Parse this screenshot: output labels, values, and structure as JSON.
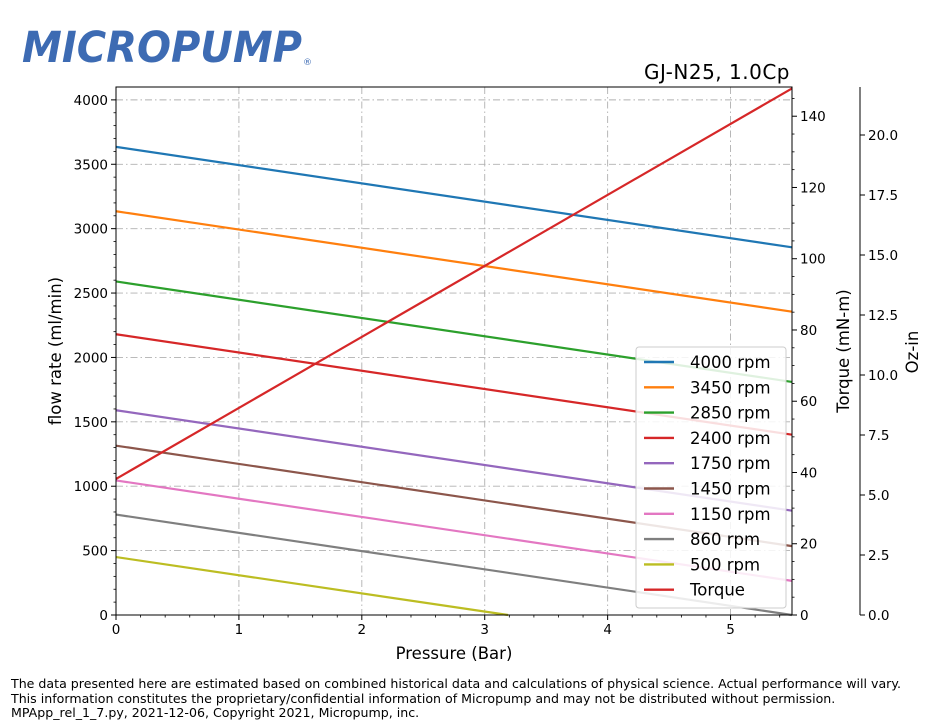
{
  "logo": {
    "text": "MICROPUMP",
    "reg": "®",
    "color": "#3d6bb3"
  },
  "subtitle": "GJ-N25,  1.0Cp",
  "footer": {
    "line1": "The data presented here are estimated based on combined historical data and calculations of physical science.  Actual performance will vary.",
    "line2": "This information constitutes the proprietary/confidential information of Micropump and may not be distributed without permission.",
    "line3": "MPApp_rel_1_7.py, 2021-12-06, Copyright 2021, Micropump, inc."
  },
  "chart_data": {
    "type": "line",
    "xlabel": "Pressure (Bar)",
    "ylabel": "flow rate (ml/min)",
    "y2label": "Torque (mN-m)",
    "y3label": "Oz-in",
    "xlim": [
      0,
      5.5
    ],
    "ylim": [
      0,
      4100
    ],
    "y2lim": [
      0,
      148.2
    ],
    "y3lim": [
      0,
      22
    ],
    "xticks": [
      0,
      1,
      2,
      3,
      4,
      5
    ],
    "yticks": [
      0,
      500,
      1000,
      1500,
      2000,
      2500,
      3000,
      3500,
      4000
    ],
    "y2ticks": [
      0,
      20,
      40,
      60,
      80,
      100,
      120,
      140
    ],
    "y3ticks": [
      "0.0",
      "2.5",
      "5.0",
      "7.5",
      "10.0",
      "12.5",
      "15.0",
      "17.5",
      "20.0"
    ],
    "grid": true,
    "legend_position": "lower-right",
    "series": [
      {
        "name": "4000 rpm",
        "color": "#1f77b4",
        "x": [
          0,
          5.5
        ],
        "y": [
          3635,
          2855
        ]
      },
      {
        "name": "3450 rpm",
        "color": "#ff7f0e",
        "x": [
          0,
          5.5
        ],
        "y": [
          3135,
          2355
        ]
      },
      {
        "name": "2850 rpm",
        "color": "#2ca02c",
        "x": [
          0,
          5.5
        ],
        "y": [
          2590,
          1810
        ]
      },
      {
        "name": "2400 rpm",
        "color": "#d62728",
        "x": [
          0,
          5.5
        ],
        "y": [
          2180,
          1400
        ]
      },
      {
        "name": "1750 rpm",
        "color": "#9467bd",
        "x": [
          0,
          5.5
        ],
        "y": [
          1590,
          810
        ]
      },
      {
        "name": "1450 rpm",
        "color": "#8c564b",
        "x": [
          0,
          5.5
        ],
        "y": [
          1315,
          535
        ]
      },
      {
        "name": "1150 rpm",
        "color": "#e377c2",
        "x": [
          0,
          5.5
        ],
        "y": [
          1045,
          265
        ]
      },
      {
        "name": "860 rpm",
        "color": "#7f7f7f",
        "x": [
          0,
          5.5
        ],
        "y": [
          780,
          0
        ]
      },
      {
        "name": "500 rpm",
        "color": "#bcbd22",
        "x": [
          0,
          3.19
        ],
        "y": [
          450,
          0
        ]
      },
      {
        "name": "Torque",
        "color": "#d62728",
        "axis": "y2",
        "x": [
          0,
          5.5
        ],
        "y": [
          38.2,
          147.8
        ]
      }
    ]
  }
}
